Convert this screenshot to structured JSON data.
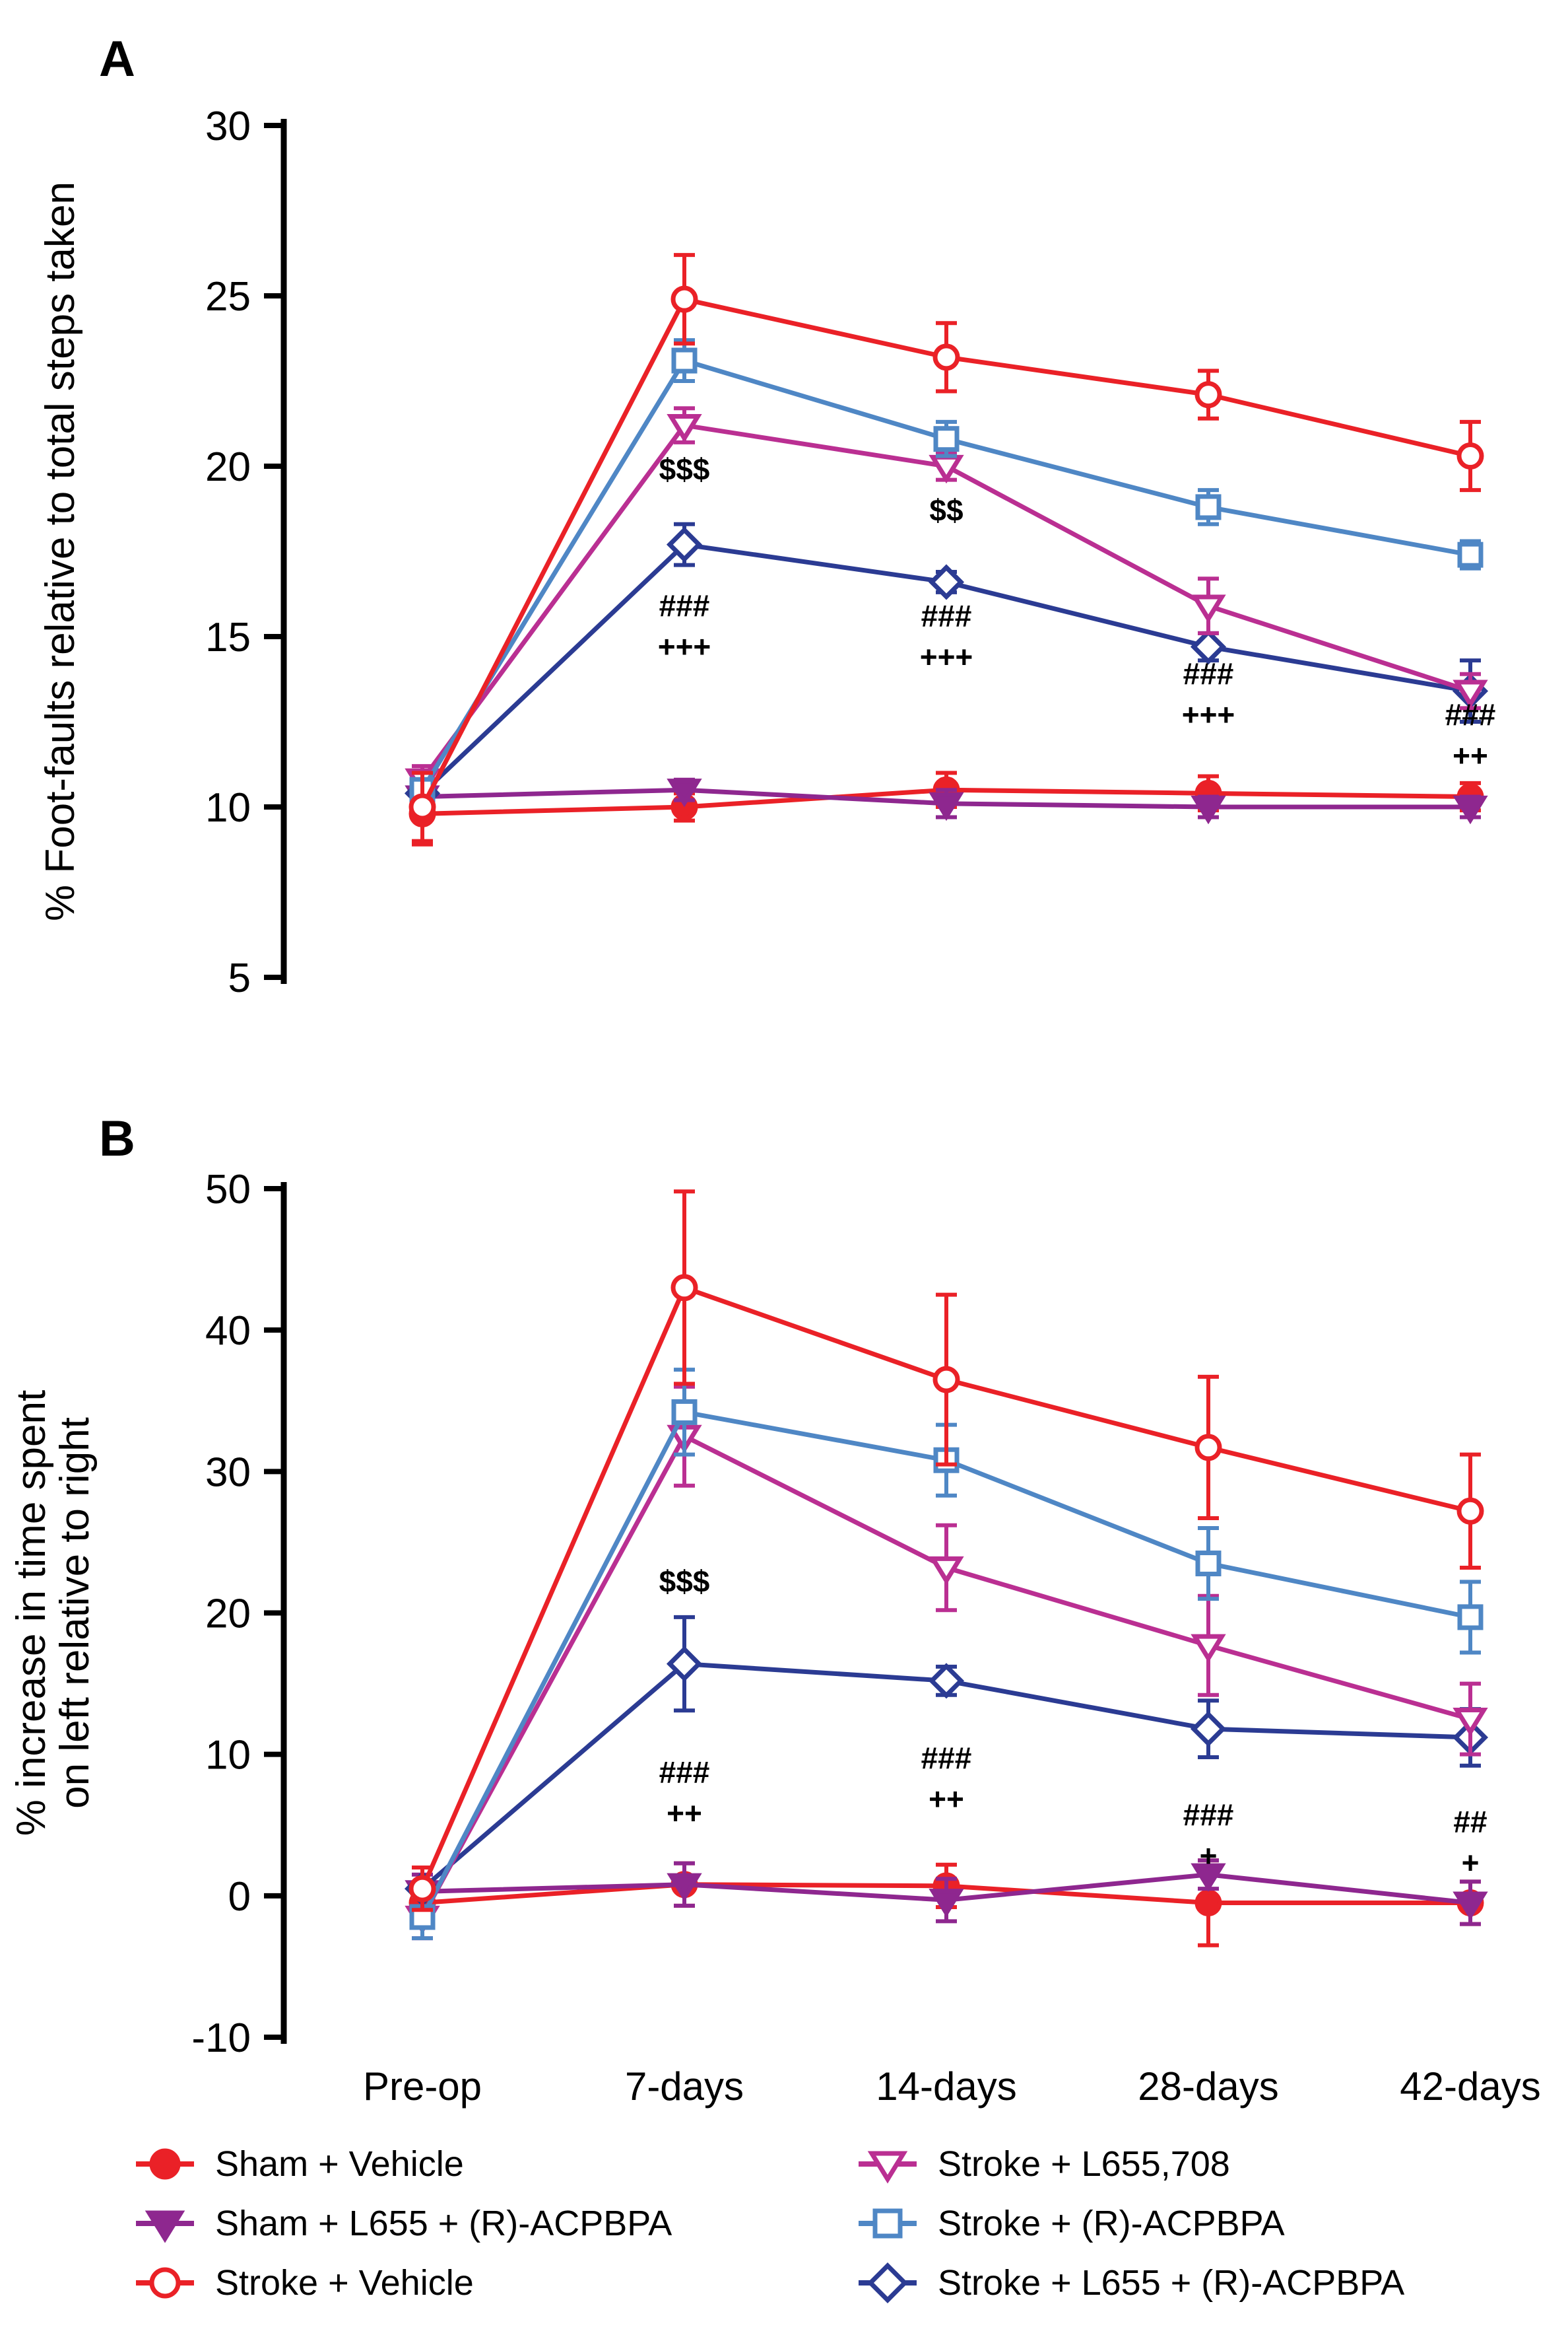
{
  "series": [
    {
      "name": "Sham + Vehicle",
      "marker": "circle",
      "filled": true,
      "color": "#EA2127"
    },
    {
      "name": "Sham + L655 + (R)-ACPBPA",
      "marker": "triangle",
      "filled": true,
      "color": "#8E278F"
    },
    {
      "name": "Stroke + Vehicle",
      "marker": "circle",
      "filled": false,
      "color": "#EA2127"
    },
    {
      "name": "Stroke + L655,708",
      "marker": "triangle",
      "filled": false,
      "color": "#BA2F92"
    },
    {
      "name": "Stroke + (R)-ACPBPA",
      "marker": "square",
      "filled": false,
      "color": "#4F87C5"
    },
    {
      "name": "Stroke + L655 + (R)-ACPBPA",
      "marker": "diamond",
      "filled": false,
      "color": "#2B3B93"
    }
  ],
  "chart_data": [
    {
      "type": "line",
      "panel_label": "A",
      "ylabel_lines": [
        "% Foot-faults relative to total steps taken"
      ],
      "categories": [
        "Pre-op",
        "7-days",
        "14-days",
        "28-days",
        "42-days"
      ],
      "show_x_labels": false,
      "ylim": [
        5,
        30
      ],
      "yticks": [
        5,
        10,
        15,
        20,
        25,
        30
      ],
      "series": [
        {
          "name": "Sham + Vehicle",
          "values": [
            9.8,
            10.0,
            10.5,
            10.4,
            10.3
          ],
          "errors": [
            0.9,
            0.4,
            0.5,
            0.5,
            0.4
          ]
        },
        {
          "name": "Sham + L655 + (R)-ACPBPA",
          "values": [
            10.3,
            10.5,
            10.1,
            10.0,
            10.0
          ],
          "errors": [
            0.5,
            0.3,
            0.4,
            0.3,
            0.3
          ]
        },
        {
          "name": "Stroke + Vehicle",
          "values": [
            10.0,
            24.9,
            23.2,
            22.1,
            20.3
          ],
          "errors": [
            1.0,
            1.3,
            1.0,
            0.7,
            1.0
          ]
        },
        {
          "name": "Stroke + L655,708",
          "values": [
            10.8,
            21.2,
            20.0,
            15.9,
            13.4
          ],
          "errors": [
            0.4,
            0.5,
            0.4,
            0.8,
            0.5
          ]
        },
        {
          "name": "Stroke + (R)-ACPBPA",
          "values": [
            10.5,
            23.1,
            20.8,
            18.8,
            17.4
          ],
          "errors": [
            0.5,
            0.6,
            0.5,
            0.5,
            0.4
          ]
        },
        {
          "name": "Stroke + L655 + (R)-ACPBPA",
          "values": [
            10.4,
            17.7,
            16.6,
            14.7,
            13.4
          ],
          "errors": [
            0.5,
            0.6,
            0.3,
            0.4,
            0.9
          ]
        }
      ],
      "annotations": [
        {
          "x": 1,
          "y": 19.6,
          "lines": [
            "$$$"
          ]
        },
        {
          "x": 1,
          "y": 15.6,
          "lines": [
            "###",
            "+++"
          ]
        },
        {
          "x": 2,
          "y": 18.4,
          "lines": [
            "$$"
          ]
        },
        {
          "x": 2,
          "y": 15.3,
          "lines": [
            "###",
            "+++"
          ]
        },
        {
          "x": 3,
          "y": 13.6,
          "lines": [
            "###",
            "+++"
          ]
        },
        {
          "x": 4,
          "y": 12.4,
          "lines": [
            "###",
            "++"
          ]
        }
      ]
    },
    {
      "type": "line",
      "panel_label": "B",
      "ylabel_lines": [
        "% increase in time spent",
        "on left relative to right"
      ],
      "categories": [
        "Pre-op",
        "7-days",
        "14-days",
        "28-days",
        "42-days"
      ],
      "show_x_labels": true,
      "ylim": [
        -10,
        50
      ],
      "yticks": [
        -10,
        0,
        10,
        20,
        30,
        40,
        50
      ],
      "series": [
        {
          "name": "Sham + Vehicle",
          "values": [
            -0.5,
            0.8,
            0.7,
            -0.5,
            -0.5
          ],
          "errors": [
            1.2,
            1.5,
            1.5,
            3.0,
            1.5
          ]
        },
        {
          "name": "Sham + L655 + (R)-ACPBPA",
          "values": [
            0.3,
            0.8,
            -0.3,
            1.5,
            -0.5
          ],
          "errors": [
            1.2,
            1.5,
            1.5,
            1.0,
            1.5
          ]
        },
        {
          "name": "Stroke + Vehicle",
          "values": [
            0.5,
            43.0,
            36.5,
            31.7,
            27.2
          ],
          "errors": [
            1.5,
            6.8,
            6.0,
            5.0,
            4.0
          ]
        },
        {
          "name": "Stroke + L655,708",
          "values": [
            -1.5,
            32.5,
            23.2,
            17.7,
            12.5
          ],
          "errors": [
            1.5,
            3.5,
            3.0,
            3.5,
            2.5
          ]
        },
        {
          "name": "Stroke + (R)-ACPBPA",
          "values": [
            -1.5,
            34.2,
            30.8,
            23.5,
            19.7
          ],
          "errors": [
            1.5,
            3.0,
            2.5,
            2.5,
            2.5
          ]
        },
        {
          "name": "Stroke + L655 + (R)-ACPBPA",
          "values": [
            0.5,
            16.4,
            15.2,
            11.8,
            11.2
          ],
          "errors": [
            1.5,
            3.3,
            1.0,
            2.0,
            2.0
          ]
        }
      ],
      "annotations": [
        {
          "x": 1,
          "y": 21.5,
          "lines": [
            "$$$"
          ]
        },
        {
          "x": 1,
          "y": 8.0,
          "lines": [
            "###",
            "++"
          ]
        },
        {
          "x": 2,
          "y": 9.0,
          "lines": [
            "###",
            "++"
          ]
        },
        {
          "x": 3,
          "y": 5.0,
          "lines": [
            "###",
            "+"
          ]
        },
        {
          "x": 4,
          "y": 4.5,
          "lines": [
            "##",
            "+"
          ]
        }
      ]
    }
  ]
}
